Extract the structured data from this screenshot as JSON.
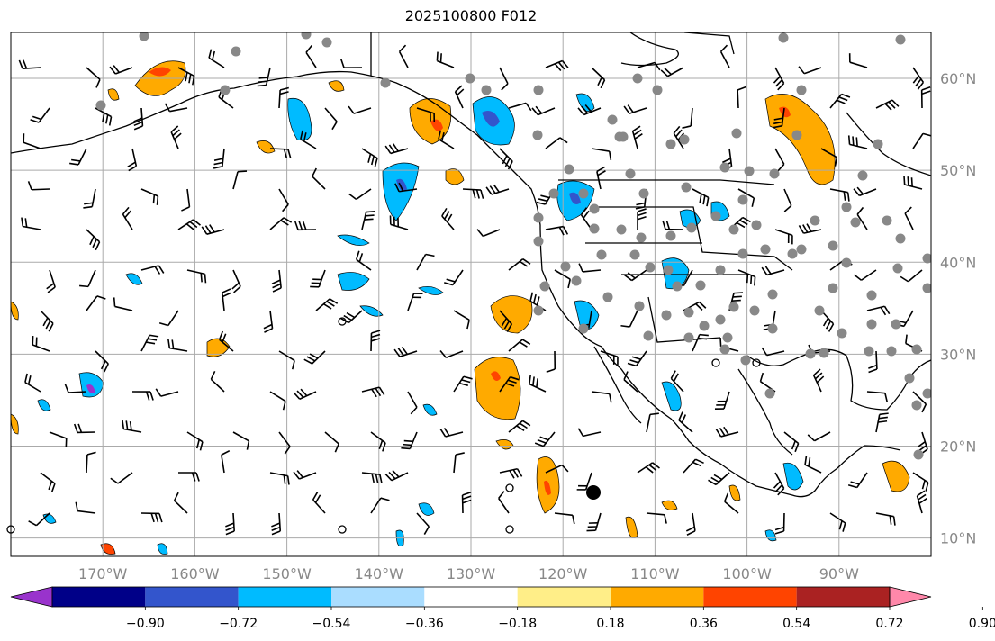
{
  "title": "2025100800 F012",
  "map": {
    "lon_range": [
      -180,
      -80
    ],
    "lat_range": [
      8,
      65
    ],
    "gridlines": true,
    "lon_labels": [
      "170°W",
      "160°W",
      "150°W",
      "140°W",
      "130°W",
      "120°W",
      "110°W",
      "100°W",
      "90°W"
    ],
    "lat_labels": [
      "10°N",
      "20°N",
      "30°N",
      "40°N",
      "50°N",
      "60°N"
    ]
  },
  "colorbar": {
    "ticks": [
      "−0.90",
      "−0.72",
      "−0.54",
      "−0.36",
      "−0.18",
      "0.18",
      "0.36",
      "0.54",
      "0.72",
      "0.90"
    ],
    "colors": [
      "#9933cc",
      "#000088",
      "#3355cc",
      "#00bbff",
      "#aaddff",
      "#ffffff",
      "#ffee88",
      "#ffaa00",
      "#ff4400",
      "#aa2222",
      "#ff88aa"
    ]
  },
  "palette": {
    "grid": "#aaaaaa",
    "coast": "#000000",
    "station": "#888888",
    "barb": "#000000"
  }
}
